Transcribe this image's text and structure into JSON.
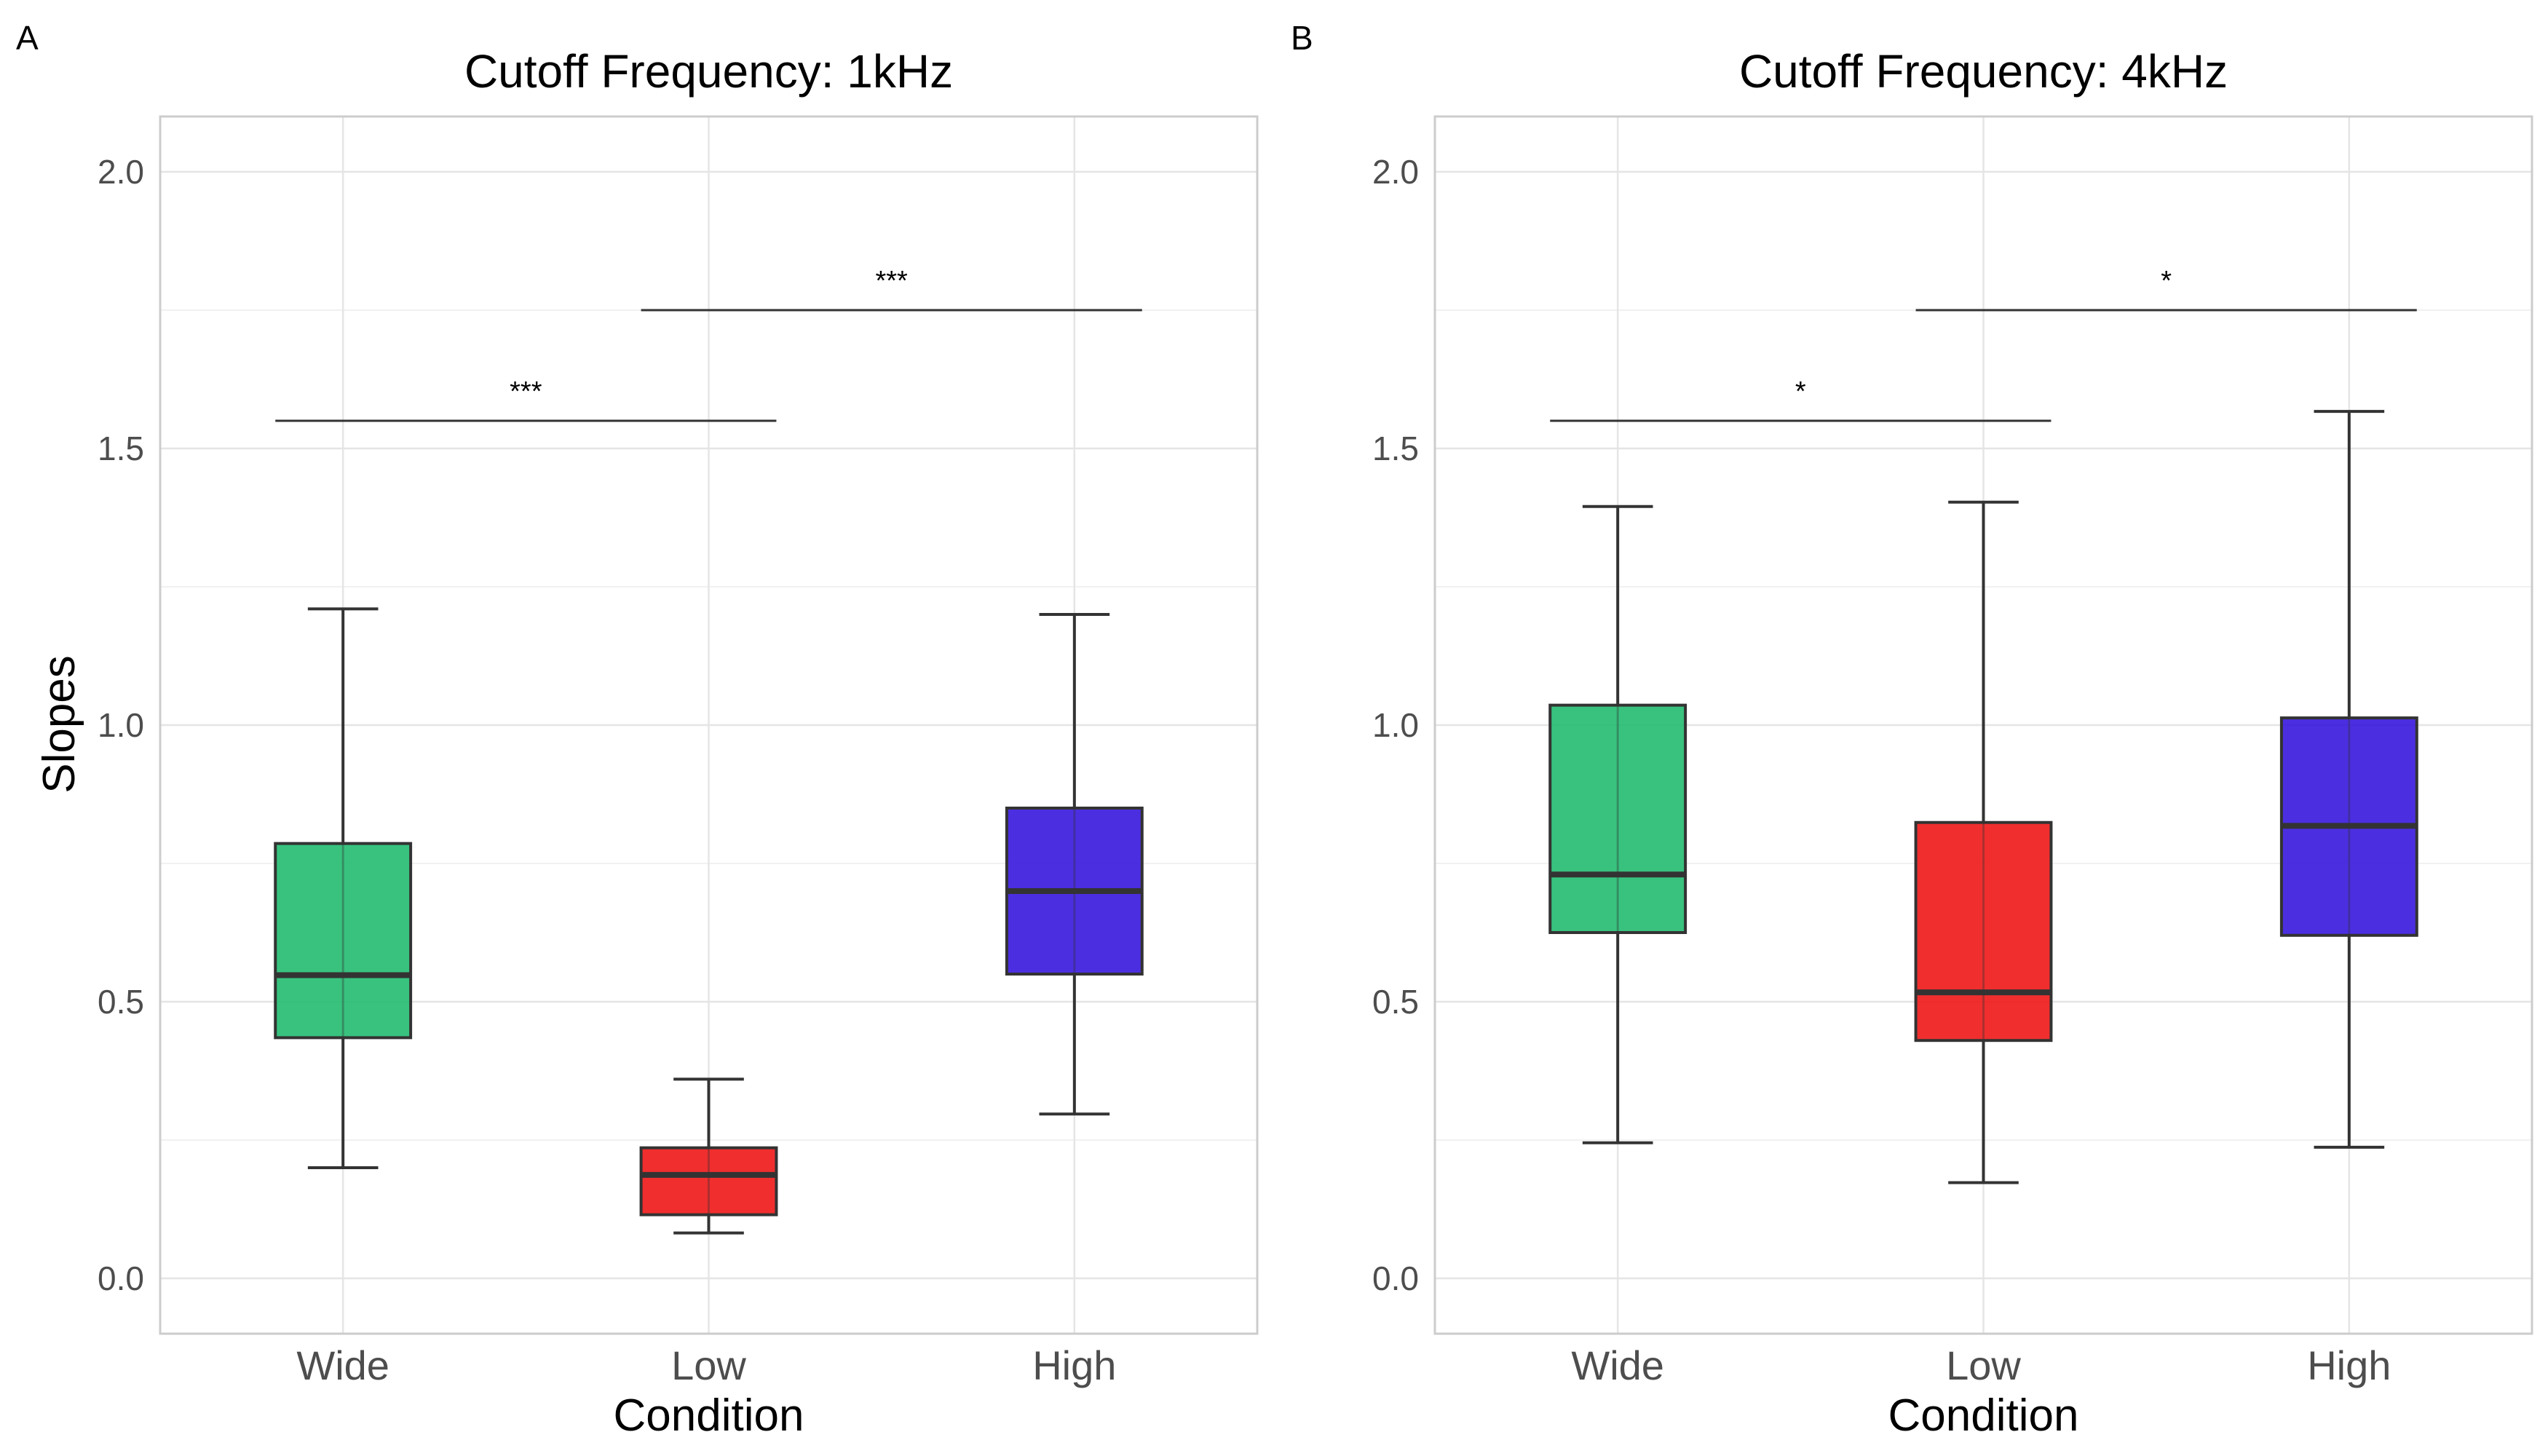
{
  "figure": {
    "y_axis_label": "Slopes",
    "x_axis_label": "Condition"
  },
  "chart_data": [
    {
      "type": "box",
      "panel_label": "A",
      "title": "Cutoff Frequency: 1kHz",
      "xlabel": "Condition",
      "ylabel": "Slopes",
      "categories": [
        "Wide",
        "Low",
        "High"
      ],
      "ylim": [
        -0.1,
        2.1
      ],
      "yticks": [
        "0.0",
        "0.5",
        "1.0",
        "1.5",
        "2.0"
      ],
      "ytick_values": [
        0.0,
        0.5,
        1.0,
        1.5,
        2.0
      ],
      "grid": true,
      "legend": "none",
      "boxes": [
        {
          "category": "Wide",
          "whisker_low": 0.2,
          "q1": 0.435,
          "median": 0.548,
          "q3": 0.786,
          "whisker_high": 1.21
        },
        {
          "category": "Low",
          "whisker_low": 0.082,
          "q1": 0.115,
          "median": 0.187,
          "q3": 0.236,
          "whisker_high": 0.36
        },
        {
          "category": "High",
          "whisker_low": 0.297,
          "q1": 0.55,
          "median": 0.7,
          "q3": 0.85,
          "whisker_high": 1.2
        }
      ],
      "significance": [
        {
          "from": "Wide",
          "to": "Low",
          "y": 1.55,
          "label": "***"
        },
        {
          "from": "Low",
          "to": "High",
          "y": 1.75,
          "label": "***"
        }
      ]
    },
    {
      "type": "box",
      "panel_label": "B",
      "title": "Cutoff Frequency: 4kHz",
      "xlabel": "Condition",
      "ylabel": "",
      "categories": [
        "Wide",
        "Low",
        "High"
      ],
      "ylim": [
        -0.1,
        2.1
      ],
      "yticks": [
        "0.0",
        "0.5",
        "1.0",
        "1.5",
        "2.0"
      ],
      "ytick_values": [
        0.0,
        0.5,
        1.0,
        1.5,
        2.0
      ],
      "grid": true,
      "legend": "none",
      "boxes": [
        {
          "category": "Wide",
          "whisker_low": 0.245,
          "q1": 0.625,
          "median": 0.73,
          "q3": 1.036,
          "whisker_high": 1.395
        },
        {
          "category": "Low",
          "whisker_low": 0.173,
          "q1": 0.43,
          "median": 0.517,
          "q3": 0.824,
          "whisker_high": 1.403
        },
        {
          "category": "High",
          "whisker_low": 0.237,
          "q1": 0.62,
          "median": 0.818,
          "q3": 1.013,
          "whisker_high": 1.567
        }
      ],
      "significance": [
        {
          "from": "Wide",
          "to": "Low",
          "y": 1.55,
          "label": "*"
        },
        {
          "from": "Low",
          "to": "High",
          "y": 1.75,
          "label": "*"
        }
      ]
    }
  ],
  "colors": {
    "Wide": "#1dba6c",
    "Low": "#ee1111",
    "High": "#3311dd",
    "box_stroke": "#333333",
    "grid": "#e5e5e5",
    "panel_border": "#cccccc"
  }
}
